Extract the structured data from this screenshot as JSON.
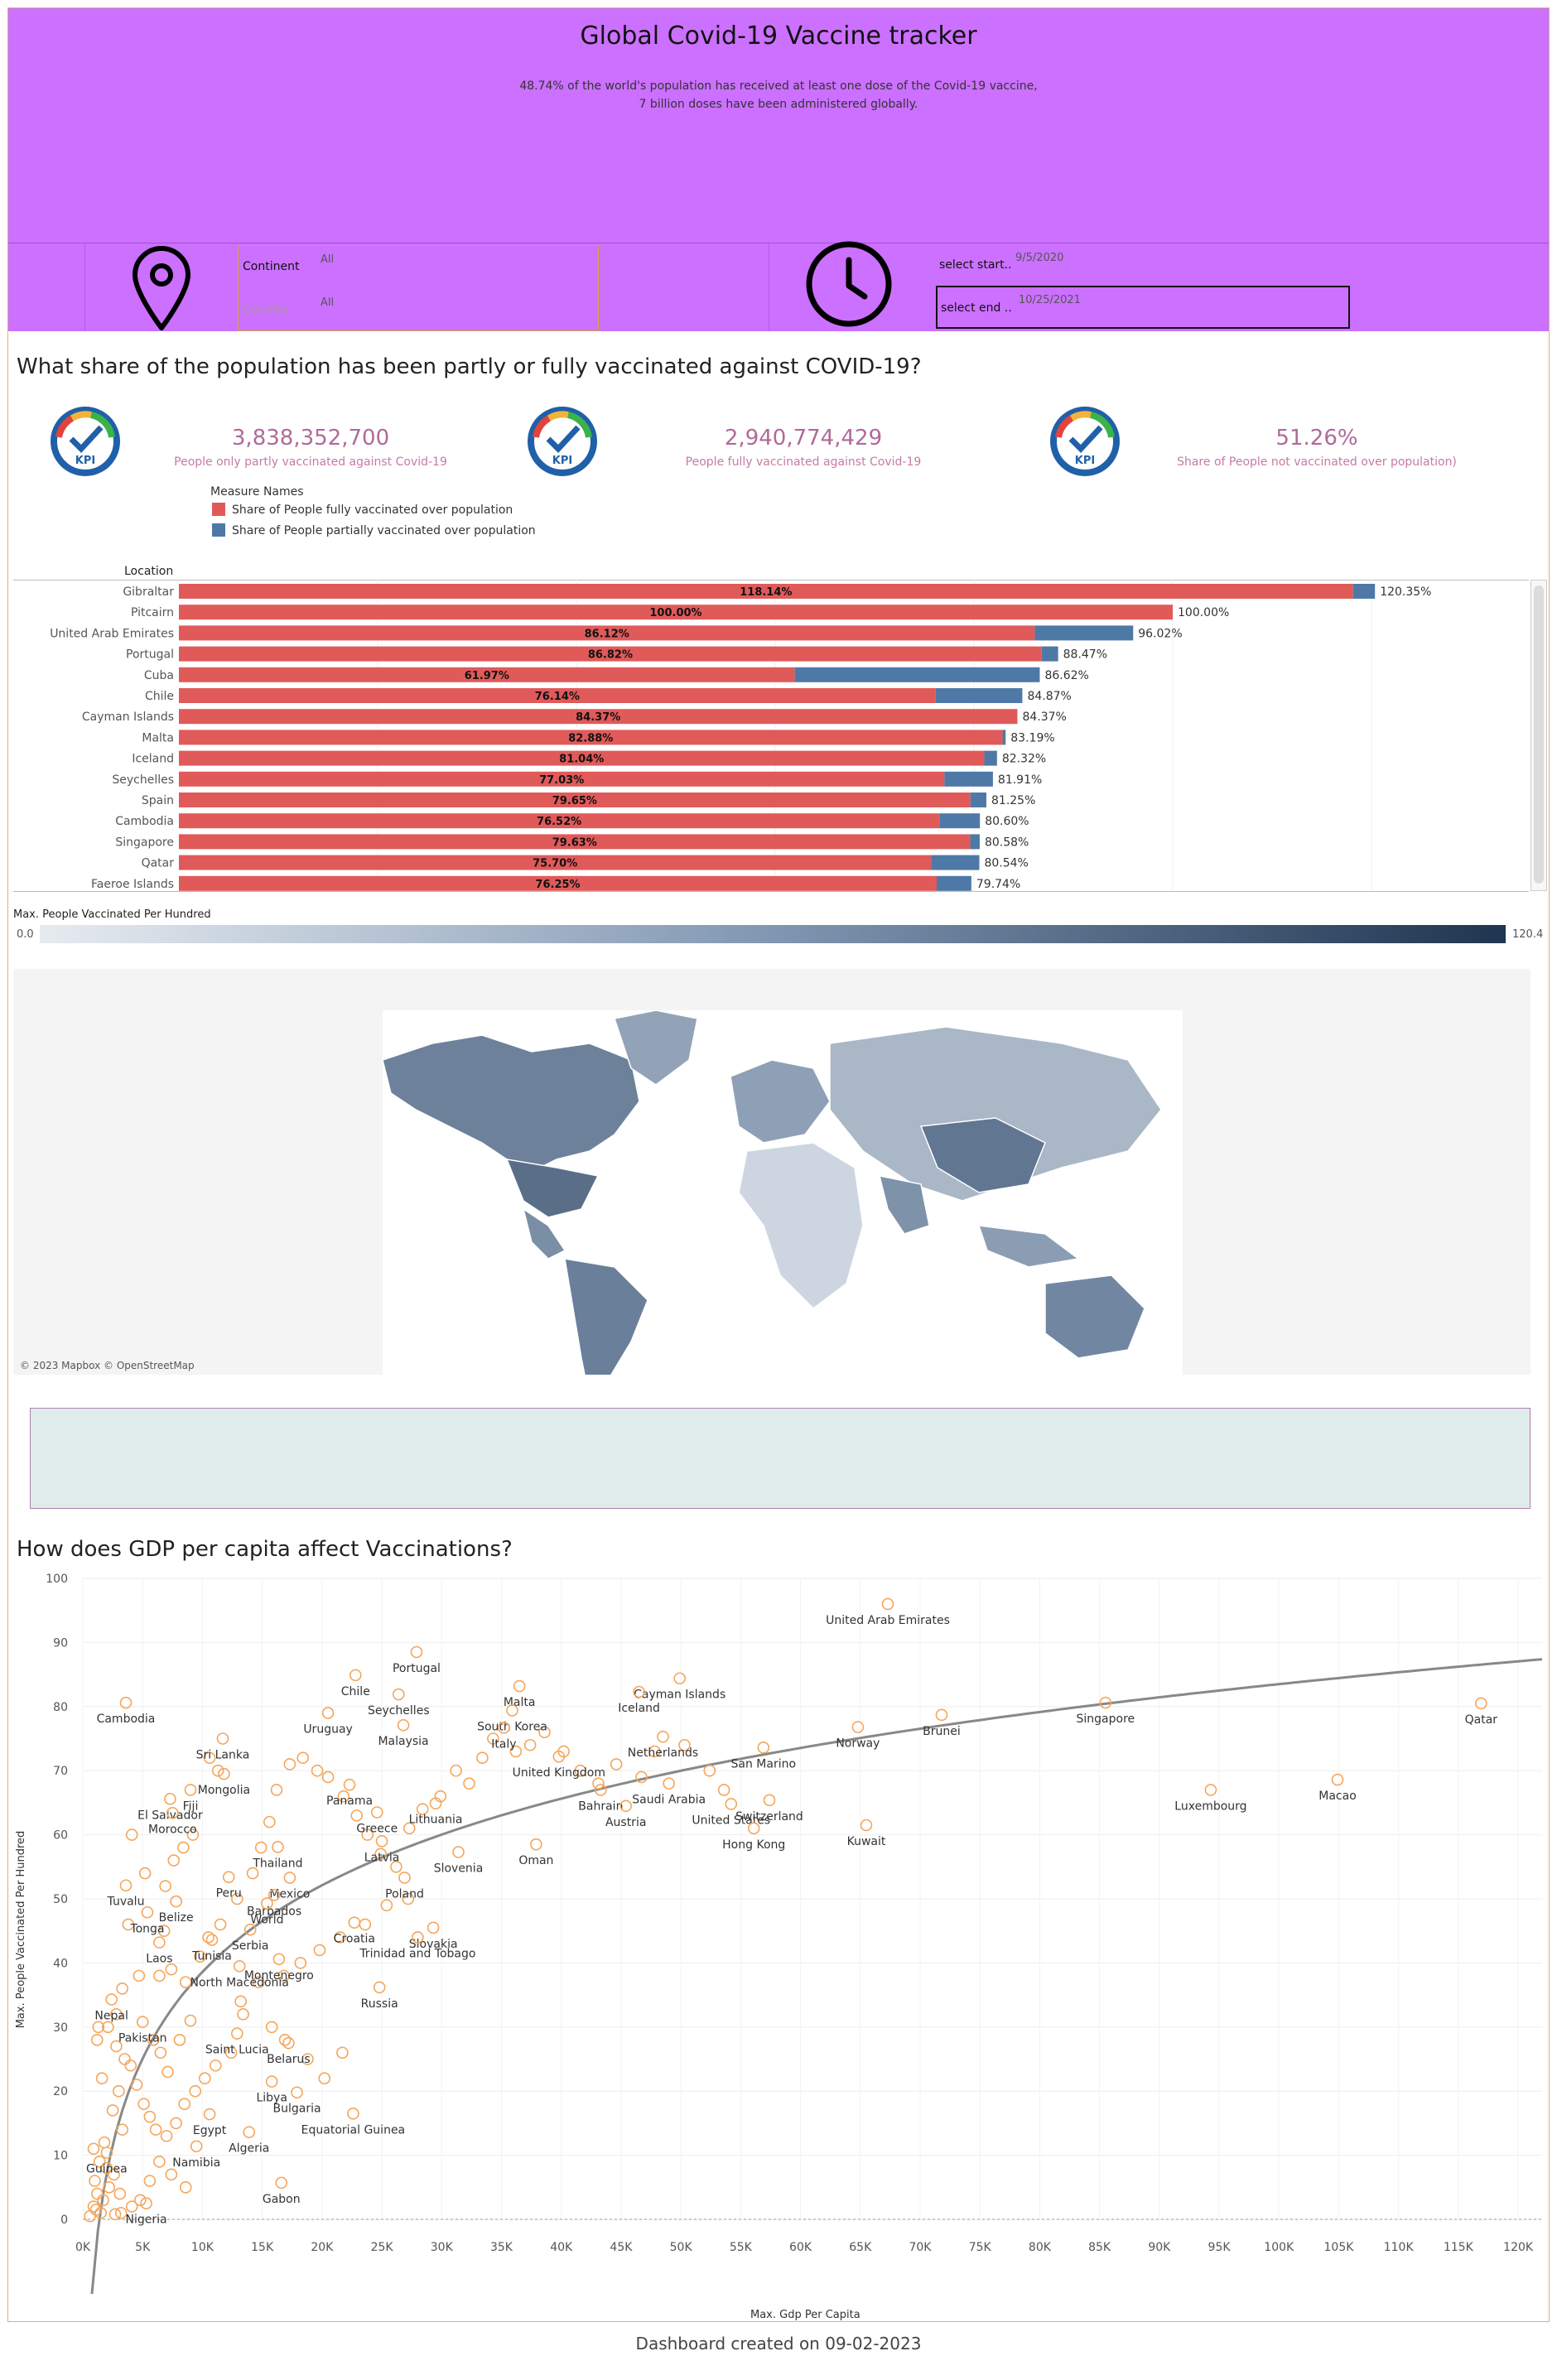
{
  "header": {
    "title": "Global Covid-19 Vaccine tracker",
    "subtitle_line1": "48.74% of the world's population has received at least one dose of the Covid-19 vaccine,",
    "subtitle_line2": "7 billion doses have been administered globally."
  },
  "filters": {
    "continent_label": "Continent",
    "continent_value": "All",
    "country_label": "Country",
    "country_value": "All",
    "start_label": "select start..",
    "start_value": "9/5/2020",
    "end_label": "select end ..",
    "end_value": "10/25/2021"
  },
  "section1": {
    "title": "What share of the population has been partly or fully vaccinated against COVID-19?",
    "kpis": [
      {
        "value": "3,838,352,700",
        "label": "People only partly vaccinated against Covid-19"
      },
      {
        "value": "2,940,774,429",
        "label": "People fully vaccinated against Covid-19"
      },
      {
        "value": "51.26%",
        "label": "Share of People not vaccinated over population)"
      }
    ],
    "kpi_badge": "KPI",
    "legend_title": "Measure Names",
    "legend": [
      {
        "label": "Share of People fully vaccinated over population",
        "color": "#e05a5a"
      },
      {
        "label": "Share of People partially vaccinated over population",
        "color": "#4e79a7"
      }
    ],
    "location_header": "Location"
  },
  "bar_chart": {
    "type": "bar",
    "xlim": [
      0,
      150
    ],
    "rows": [
      {
        "location": "Gibraltar",
        "full": 118.14,
        "total": 120.35,
        "full_label": "118.14%",
        "total_label": "120.35%"
      },
      {
        "location": "Pitcairn",
        "full": 100.0,
        "total": 100.0,
        "full_label": "100.00%",
        "total_label": "100.00%"
      },
      {
        "location": "United Arab Emirates",
        "full": 86.12,
        "total": 96.02,
        "full_label": "86.12%",
        "total_label": "96.02%"
      },
      {
        "location": "Portugal",
        "full": 86.82,
        "total": 88.47,
        "full_label": "86.82%",
        "total_label": "88.47%"
      },
      {
        "location": "Cuba",
        "full": 61.97,
        "total": 86.62,
        "full_label": "61.97%",
        "total_label": "86.62%"
      },
      {
        "location": "Chile",
        "full": 76.14,
        "total": 84.87,
        "full_label": "76.14%",
        "total_label": "84.87%"
      },
      {
        "location": "Cayman Islands",
        "full": 84.37,
        "total": 84.37,
        "full_label": "84.37%",
        "total_label": "84.37%"
      },
      {
        "location": "Malta",
        "full": 82.88,
        "total": 83.19,
        "full_label": "82.88%",
        "total_label": "83.19%"
      },
      {
        "location": "Iceland",
        "full": 81.04,
        "total": 82.32,
        "full_label": "81.04%",
        "total_label": "82.32%"
      },
      {
        "location": "Seychelles",
        "full": 77.03,
        "total": 81.91,
        "full_label": "77.03%",
        "total_label": "81.91%"
      },
      {
        "location": "Spain",
        "full": 79.65,
        "total": 81.25,
        "full_label": "79.65%",
        "total_label": "81.25%"
      },
      {
        "location": "Cambodia",
        "full": 76.52,
        "total": 80.6,
        "full_label": "76.52%",
        "total_label": "80.60%"
      },
      {
        "location": "Singapore",
        "full": 79.63,
        "total": 80.58,
        "full_label": "79.63%",
        "total_label": "80.58%"
      },
      {
        "location": "Qatar",
        "full": 75.7,
        "total": 80.54,
        "full_label": "75.70%",
        "total_label": "80.54%"
      },
      {
        "location": "Faeroe Islands",
        "full": 76.25,
        "total": 79.74,
        "full_label": "76.25%",
        "total_label": "79.74%"
      }
    ]
  },
  "map": {
    "legend_title": "Max. People Vaccinated Per Hundred",
    "legend_min": "0.0",
    "legend_max": "120.4",
    "attribution": "© 2023 Mapbox © OpenStreetMap",
    "low_color": "#e6ebf0",
    "high_color": "#1f3550"
  },
  "section2": {
    "title": "How does GDP per capita affect Vaccinations?"
  },
  "chart_data": {
    "type": "scatter",
    "xlabel": "Max. Gdp Per Capita",
    "ylabel": "Max. People Vaccinated Per Hundred",
    "xlim": [
      0,
      122000
    ],
    "ylim": [
      0,
      100
    ],
    "x_ticks": [
      "0K",
      "5K",
      "10K",
      "15K",
      "20K",
      "25K",
      "30K",
      "35K",
      "40K",
      "45K",
      "50K",
      "55K",
      "60K",
      "65K",
      "70K",
      "75K",
      "80K",
      "85K",
      "90K",
      "95K",
      "100K",
      "105K",
      "110K",
      "115K",
      "120K"
    ],
    "y_ticks": [
      "0",
      "10",
      "20",
      "30",
      "40",
      "50",
      "60",
      "70",
      "80",
      "90",
      "100"
    ],
    "labeled_points": [
      {
        "name": "United Arab Emirates",
        "x": 67300,
        "y": 96
      },
      {
        "name": "Portugal",
        "x": 27900,
        "y": 88.5
      },
      {
        "name": "Chile",
        "x": 22800,
        "y": 84.9
      },
      {
        "name": "Malta",
        "x": 36500,
        "y": 83.2
      },
      {
        "name": "Cayman Islands",
        "x": 49900,
        "y": 84.4
      },
      {
        "name": "Seychelles",
        "x": 26400,
        "y": 81.9
      },
      {
        "name": "Iceland",
        "x": 46500,
        "y": 82.3
      },
      {
        "name": "South Korea",
        "x": 35900,
        "y": 79.4
      },
      {
        "name": "Cambodia",
        "x": 3600,
        "y": 80.6
      },
      {
        "name": "Singapore",
        "x": 85500,
        "y": 80.6
      },
      {
        "name": "Qatar",
        "x": 116900,
        "y": 80.5
      },
      {
        "name": "Uruguay",
        "x": 20500,
        "y": 79
      },
      {
        "name": "Brunei",
        "x": 71800,
        "y": 78.7
      },
      {
        "name": "Italy",
        "x": 35200,
        "y": 76.7
      },
      {
        "name": "Malaysia",
        "x": 26800,
        "y": 77.1
      },
      {
        "name": "Netherlands",
        "x": 48500,
        "y": 75.3
      },
      {
        "name": "Norway",
        "x": 64800,
        "y": 76.8
      },
      {
        "name": "Sri Lanka",
        "x": 11700,
        "y": 75
      },
      {
        "name": "San Marino",
        "x": 56900,
        "y": 73.6
      },
      {
        "name": "Mongolia",
        "x": 11800,
        "y": 69.5
      },
      {
        "name": "United Kingdom",
        "x": 39800,
        "y": 72.2
      },
      {
        "name": "Fiji",
        "x": 9000,
        "y": 67
      },
      {
        "name": "Saudi Arabia",
        "x": 49000,
        "y": 68
      },
      {
        "name": "Panama",
        "x": 22300,
        "y": 67.8
      },
      {
        "name": "Bahrain",
        "x": 43300,
        "y": 67
      },
      {
        "name": "Luxembourg",
        "x": 94300,
        "y": 67
      },
      {
        "name": "Macao",
        "x": 104900,
        "y": 68.6
      },
      {
        "name": "El Salvador",
        "x": 7300,
        "y": 65.6
      },
      {
        "name": "Switzerland",
        "x": 57400,
        "y": 65.4
      },
      {
        "name": "Lithuania",
        "x": 29500,
        "y": 64.9
      },
      {
        "name": "Greece",
        "x": 24600,
        "y": 63.5
      },
      {
        "name": "United States",
        "x": 54200,
        "y": 64.8
      },
      {
        "name": "Austria",
        "x": 45400,
        "y": 64.5
      },
      {
        "name": "Morocco",
        "x": 7500,
        "y": 63.4
      },
      {
        "name": "Kuwait",
        "x": 65500,
        "y": 61.5
      },
      {
        "name": "Hong Kong",
        "x": 56100,
        "y": 61
      },
      {
        "name": "Oman",
        "x": 37900,
        "y": 58.5
      },
      {
        "name": "Thailand",
        "x": 16300,
        "y": 58.1
      },
      {
        "name": "Latvia",
        "x": 25000,
        "y": 59
      },
      {
        "name": "Tuvalu",
        "x": 3600,
        "y": 52.1
      },
      {
        "name": "Slovenia",
        "x": 31400,
        "y": 57.3
      },
      {
        "name": "Peru",
        "x": 12200,
        "y": 53.4
      },
      {
        "name": "Mexico",
        "x": 17300,
        "y": 53.3
      },
      {
        "name": "Barbados",
        "x": 16000,
        "y": 50.6
      },
      {
        "name": "Poland",
        "x": 26900,
        "y": 53.3
      },
      {
        "name": "Belize",
        "x": 7800,
        "y": 49.6
      },
      {
        "name": "World",
        "x": 15400,
        "y": 49.3
      },
      {
        "name": "Tonga",
        "x": 5400,
        "y": 47.9
      },
      {
        "name": "Croatia",
        "x": 22700,
        "y": 46.3
      },
      {
        "name": "Serbia",
        "x": 14000,
        "y": 45.2
      },
      {
        "name": "Slovakia",
        "x": 29300,
        "y": 45.5
      },
      {
        "name": "Laos",
        "x": 6400,
        "y": 43.2
      },
      {
        "name": "Tunisia",
        "x": 10800,
        "y": 43.6
      },
      {
        "name": "Trinidad and Tobago",
        "x": 28000,
        "y": 44
      },
      {
        "name": "Montenegro",
        "x": 16400,
        "y": 40.6
      },
      {
        "name": "North Macedonia",
        "x": 13100,
        "y": 39.5
      },
      {
        "name": "Russia",
        "x": 24800,
        "y": 36.2
      },
      {
        "name": "Nepal",
        "x": 2400,
        "y": 34.3
      },
      {
        "name": "Pakistan",
        "x": 5000,
        "y": 30.8
      },
      {
        "name": "Saint Lucia",
        "x": 12900,
        "y": 29
      },
      {
        "name": "Belarus",
        "x": 17200,
        "y": 27.5
      },
      {
        "name": "Libya",
        "x": 15800,
        "y": 21.5
      },
      {
        "name": "Bulgaria",
        "x": 17900,
        "y": 19.8
      },
      {
        "name": "Egypt",
        "x": 10600,
        "y": 16.4
      },
      {
        "name": "Algeria",
        "x": 13900,
        "y": 13.6
      },
      {
        "name": "Equatorial Guinea",
        "x": 22600,
        "y": 16.5
      },
      {
        "name": "Guinea",
        "x": 2000,
        "y": 10.4
      },
      {
        "name": "Namibia",
        "x": 9500,
        "y": 11.4
      },
      {
        "name": "Gabon",
        "x": 16600,
        "y": 5.7
      },
      {
        "name": "Nigeria",
        "x": 5300,
        "y": 2.5
      }
    ],
    "unlabeled_points": [
      [
        1000,
        6
      ],
      [
        1200,
        4
      ],
      [
        900,
        2
      ],
      [
        1500,
        1
      ],
      [
        1700,
        3
      ],
      [
        2200,
        5
      ],
      [
        2600,
        7
      ],
      [
        3100,
        4
      ],
      [
        2000,
        8
      ],
      [
        1400,
        9
      ],
      [
        900,
        11
      ],
      [
        1800,
        12
      ],
      [
        3300,
        14
      ],
      [
        2500,
        17
      ],
      [
        3000,
        20
      ],
      [
        1600,
        22
      ],
      [
        3500,
        25
      ],
      [
        2800,
        27
      ],
      [
        1200,
        28
      ],
      [
        4000,
        24
      ],
      [
        4500,
        21
      ],
      [
        5100,
        18
      ],
      [
        5600,
        16
      ],
      [
        6100,
        14
      ],
      [
        7000,
        13
      ],
      [
        7800,
        15
      ],
      [
        8500,
        18
      ],
      [
        9400,
        20
      ],
      [
        10200,
        22
      ],
      [
        11100,
        24
      ],
      [
        12400,
        26
      ],
      [
        6400,
        38
      ],
      [
        7400,
        39
      ],
      [
        8600,
        37
      ],
      [
        9800,
        41
      ],
      [
        10500,
        44
      ],
      [
        11500,
        46
      ],
      [
        6800,
        45
      ],
      [
        12900,
        50
      ],
      [
        14200,
        54
      ],
      [
        14900,
        58
      ],
      [
        15600,
        62
      ],
      [
        16200,
        67
      ],
      [
        17300,
        71
      ],
      [
        18400,
        72
      ],
      [
        19600,
        70
      ],
      [
        20500,
        69
      ],
      [
        21800,
        66
      ],
      [
        22900,
        63
      ],
      [
        23800,
        60
      ],
      [
        24900,
        57
      ],
      [
        26200,
        55
      ],
      [
        27300,
        61
      ],
      [
        28400,
        64
      ],
      [
        29900,
        66
      ],
      [
        31200,
        70
      ],
      [
        32300,
        68
      ],
      [
        33400,
        72
      ],
      [
        34300,
        75
      ],
      [
        36200,
        73
      ],
      [
        37400,
        74
      ],
      [
        38600,
        76
      ],
      [
        40200,
        73
      ],
      [
        41600,
        70
      ],
      [
        43100,
        68
      ],
      [
        44600,
        71
      ],
      [
        46700,
        69
      ],
      [
        47800,
        73
      ],
      [
        50300,
        74
      ],
      [
        52400,
        70
      ],
      [
        53600,
        67
      ],
      [
        11300,
        70
      ],
      [
        10600,
        72
      ],
      [
        9200,
        60
      ],
      [
        8400,
        58
      ],
      [
        7600,
        56
      ],
      [
        6900,
        52
      ],
      [
        5200,
        54
      ],
      [
        4100,
        60
      ],
      [
        3800,
        46
      ],
      [
        4700,
        38
      ],
      [
        3300,
        36
      ],
      [
        2800,
        32
      ],
      [
        2100,
        30
      ],
      [
        1300,
        30
      ],
      [
        5900,
        28
      ],
      [
        6500,
        26
      ],
      [
        7100,
        23
      ],
      [
        8100,
        28
      ],
      [
        9000,
        31
      ],
      [
        13200,
        34
      ],
      [
        14700,
        37
      ],
      [
        16800,
        38
      ],
      [
        18200,
        40
      ],
      [
        19800,
        42
      ],
      [
        21500,
        44
      ],
      [
        23600,
        46
      ],
      [
        25400,
        49
      ],
      [
        27200,
        50
      ],
      [
        13400,
        32
      ],
      [
        15800,
        30
      ],
      [
        16900,
        28
      ],
      [
        18800,
        25
      ],
      [
        20200,
        22
      ],
      [
        21700,
        26
      ],
      [
        4800,
        3
      ],
      [
        3200,
        1
      ],
      [
        5600,
        6
      ],
      [
        6400,
        9
      ],
      [
        7400,
        7
      ],
      [
        8600,
        5
      ],
      [
        600,
        0.5
      ],
      [
        2700,
        0.8
      ],
      [
        4100,
        2
      ],
      [
        1100,
        1.5
      ]
    ],
    "trend": "logarithmic"
  },
  "footer": {
    "text": "Dashboard created on 09-02-2023"
  }
}
